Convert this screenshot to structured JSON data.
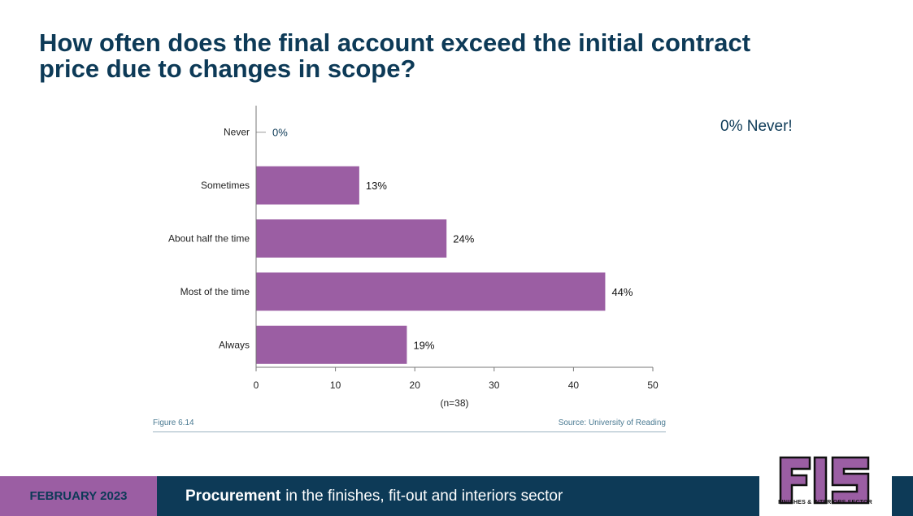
{
  "title": "How often does the final account exceed the initial contract price due to changes in scope?",
  "side_note": "0% Never!",
  "chart_data": {
    "type": "bar",
    "orientation": "horizontal",
    "categories": [
      "Never",
      "Sometimes",
      "About half the time",
      "Most of the time",
      "Always"
    ],
    "values": [
      0,
      13,
      24,
      44,
      19
    ],
    "value_labels": [
      "0%",
      "13%",
      "24%",
      "44%",
      "19%"
    ],
    "xlim": [
      0,
      50
    ],
    "xticks": [
      0,
      10,
      20,
      30,
      40,
      50
    ],
    "xlabel": "(n=38)",
    "bar_color": "#9b5ea3",
    "grid": false
  },
  "figure_label": "Figure 6.14",
  "source_label": "Source: University of Reading",
  "footer": {
    "date": "FEBRUARY 2023",
    "title_bold": "Procurement",
    "title_rest": "in the finishes, fit-out and interiors sector"
  },
  "logo": {
    "text": "FIS",
    "caption": "FINISHES & INTERIORS SECTOR",
    "color": "#9b5ea3"
  }
}
